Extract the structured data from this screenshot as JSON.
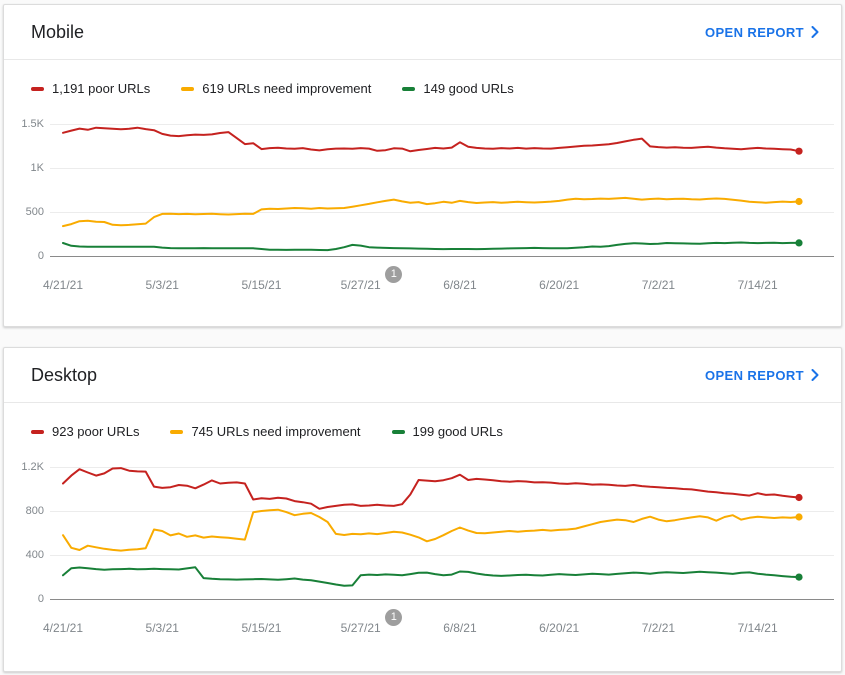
{
  "page": {
    "background": "#fafafa"
  },
  "colors": {
    "poor": "#c5221f",
    "need_improvement": "#f9ab00",
    "good": "#188038",
    "link": "#1a73e8",
    "badge": "#9e9e9e",
    "axis_text": "#80868b"
  },
  "cards": [
    {
      "title": "Mobile",
      "open_report_label": "OPEN REPORT",
      "legend": [
        {
          "label": "1,191 poor URLs",
          "color": "#c5221f"
        },
        {
          "label": "619 URLs need improvement",
          "color": "#f9ab00"
        },
        {
          "label": "149 good URLs",
          "color": "#188038"
        }
      ]
    },
    {
      "title": "Desktop",
      "open_report_label": "OPEN REPORT",
      "legend": [
        {
          "label": "923 poor URLs",
          "color": "#c5221f"
        },
        {
          "label": "745 URLs need improvement",
          "color": "#f9ab00"
        },
        {
          "label": "199 good URLs",
          "color": "#188038"
        }
      ]
    }
  ],
  "chart_data": [
    {
      "type": "line",
      "title": "Mobile",
      "ylim": [
        0,
        1500
      ],
      "ymax": 1500,
      "grid": true,
      "y_ticks": [
        {
          "label": "1.5K",
          "value": 1500
        },
        {
          "label": "1K",
          "value": 1000
        },
        {
          "label": "500",
          "value": 500
        },
        {
          "label": "0",
          "value": 0
        }
      ],
      "x_tick_labels": [
        "4/21/21",
        "5/3/21",
        "5/15/21",
        "5/27/21",
        "6/8/21",
        "6/20/21",
        "7/2/21",
        "7/14/21"
      ],
      "x_tick_indices": [
        0,
        12,
        24,
        36,
        48,
        60,
        72,
        84
      ],
      "annotation": {
        "label": "1",
        "index": 40
      },
      "series": [
        {
          "name": "poor URLs",
          "color": "#c5221f",
          "end_value": 1191,
          "values": [
            1400,
            1425,
            1448,
            1434,
            1458,
            1452,
            1446,
            1440,
            1446,
            1458,
            1442,
            1430,
            1388,
            1368,
            1362,
            1372,
            1380,
            1376,
            1382,
            1398,
            1408,
            1340,
            1272,
            1282,
            1215,
            1226,
            1230,
            1222,
            1218,
            1226,
            1210,
            1200,
            1214,
            1220,
            1222,
            1218,
            1226,
            1220,
            1196,
            1202,
            1224,
            1220,
            1190,
            1205,
            1216,
            1228,
            1222,
            1232,
            1292,
            1242,
            1228,
            1222,
            1218,
            1226,
            1222,
            1228,
            1220,
            1226,
            1222,
            1220,
            1228,
            1236,
            1244,
            1252,
            1256,
            1262,
            1270,
            1284,
            1302,
            1320,
            1334,
            1246,
            1238,
            1232,
            1236,
            1230,
            1228,
            1236,
            1242,
            1232,
            1224,
            1218,
            1214,
            1222,
            1228,
            1222,
            1218,
            1214,
            1210,
            1191
          ]
        },
        {
          "name": "URLs need improvement",
          "color": "#f9ab00",
          "end_value": 619,
          "values": [
            340,
            362,
            396,
            400,
            390,
            386,
            354,
            350,
            353,
            360,
            368,
            442,
            478,
            481,
            476,
            478,
            474,
            477,
            479,
            475,
            472,
            476,
            480,
            478,
            530,
            538,
            534,
            540,
            546,
            542,
            538,
            545,
            540,
            543,
            546,
            560,
            576,
            592,
            610,
            626,
            641,
            620,
            606,
            612,
            590,
            600,
            616,
            605,
            626,
            612,
            602,
            608,
            613,
            606,
            610,
            616,
            611,
            608,
            613,
            618,
            626,
            641,
            650,
            646,
            648,
            652,
            649,
            655,
            660,
            650,
            641,
            648,
            652,
            645,
            649,
            651,
            645,
            642,
            649,
            653,
            649,
            640,
            629,
            616,
            610,
            606,
            612,
            618,
            614,
            619
          ]
        },
        {
          "name": "good URLs",
          "color": "#188038",
          "end_value": 149,
          "values": [
            148,
            116,
            108,
            105,
            104,
            105,
            106,
            105,
            104,
            105,
            106,
            105,
            95,
            90,
            88,
            88,
            89,
            90,
            88,
            87,
            88,
            89,
            88,
            87,
            80,
            72,
            70,
            69,
            70,
            71,
            70,
            68,
            67,
            80,
            100,
            126,
            118,
            100,
            95,
            92,
            90,
            88,
            86,
            84,
            82,
            80,
            78,
            79,
            80,
            79,
            78,
            79,
            82,
            84,
            86,
            88,
            90,
            92,
            90,
            88,
            87,
            89,
            94,
            100,
            108,
            104,
            112,
            126,
            138,
            145,
            142,
            136,
            140,
            148,
            146,
            143,
            141,
            139,
            144,
            149,
            147,
            151,
            153,
            149,
            147,
            149,
            151,
            147,
            149,
            149
          ]
        }
      ]
    },
    {
      "type": "line",
      "title": "Desktop",
      "ylim": [
        0,
        1200
      ],
      "ymax": 1200,
      "grid": true,
      "y_ticks": [
        {
          "label": "1.2K",
          "value": 1200
        },
        {
          "label": "800",
          "value": 800
        },
        {
          "label": "400",
          "value": 400
        },
        {
          "label": "0",
          "value": 0
        }
      ],
      "x_tick_labels": [
        "4/21/21",
        "5/3/21",
        "5/15/21",
        "5/27/21",
        "6/8/21",
        "6/20/21",
        "7/2/21",
        "7/14/21"
      ],
      "x_tick_indices": [
        0,
        12,
        24,
        36,
        48,
        60,
        72,
        84
      ],
      "annotation": {
        "label": "1",
        "index": 40
      },
      "series": [
        {
          "name": "poor URLs",
          "color": "#c5221f",
          "end_value": 923,
          "values": [
            1050,
            1122,
            1180,
            1150,
            1122,
            1142,
            1186,
            1190,
            1166,
            1160,
            1158,
            1022,
            1010,
            1016,
            1036,
            1030,
            1006,
            1040,
            1078,
            1050,
            1056,
            1060,
            1050,
            905,
            916,
            910,
            920,
            914,
            890,
            880,
            866,
            820,
            836,
            846,
            856,
            860,
            846,
            850,
            856,
            850,
            846,
            862,
            950,
            1082,
            1076,
            1070,
            1080,
            1098,
            1130,
            1082,
            1092,
            1086,
            1080,
            1070,
            1066,
            1072,
            1068,
            1060,
            1062,
            1058,
            1050,
            1046,
            1052,
            1048,
            1040,
            1042,
            1038,
            1032,
            1028,
            1036,
            1026,
            1020,
            1016,
            1010,
            1006,
            1000,
            996,
            986,
            976,
            970,
            962,
            956,
            948,
            940,
            962,
            946,
            950,
            938,
            930,
            923
          ]
        },
        {
          "name": "URLs need improvement",
          "color": "#f9ab00",
          "end_value": 745,
          "values": [
            580,
            465,
            445,
            485,
            470,
            456,
            446,
            440,
            448,
            452,
            462,
            632,
            618,
            578,
            595,
            565,
            578,
            558,
            568,
            562,
            556,
            548,
            540,
            788,
            800,
            806,
            812,
            790,
            762,
            775,
            782,
            745,
            700,
            592,
            582,
            592,
            588,
            596,
            590,
            600,
            612,
            605,
            585,
            560,
            525,
            545,
            580,
            618,
            650,
            622,
            600,
            598,
            605,
            612,
            618,
            612,
            618,
            622,
            628,
            622,
            628,
            632,
            640,
            660,
            680,
            700,
            712,
            722,
            716,
            700,
            728,
            748,
            722,
            706,
            716,
            730,
            742,
            752,
            742,
            712,
            745,
            762,
            722,
            738,
            748,
            742,
            736,
            742,
            738,
            745
          ]
        },
        {
          "name": "good URLs",
          "color": "#188038",
          "end_value": 199,
          "values": [
            215,
            280,
            286,
            280,
            272,
            266,
            270,
            272,
            275,
            270,
            272,
            275,
            272,
            270,
            268,
            278,
            288,
            190,
            184,
            180,
            178,
            176,
            178,
            180,
            182,
            178,
            175,
            180,
            186,
            176,
            170,
            158,
            145,
            132,
            120,
            124,
            215,
            222,
            218,
            224,
            220,
            215,
            226,
            238,
            240,
            226,
            215,
            222,
            250,
            246,
            232,
            220,
            214,
            210,
            214,
            218,
            220,
            216,
            214,
            220,
            226,
            222,
            218,
            224,
            230,
            226,
            222,
            228,
            235,
            240,
            236,
            230,
            238,
            244,
            240,
            236,
            242,
            248,
            244,
            240,
            235,
            228,
            238,
            242,
            230,
            222,
            215,
            208,
            202,
            199
          ]
        }
      ]
    }
  ]
}
